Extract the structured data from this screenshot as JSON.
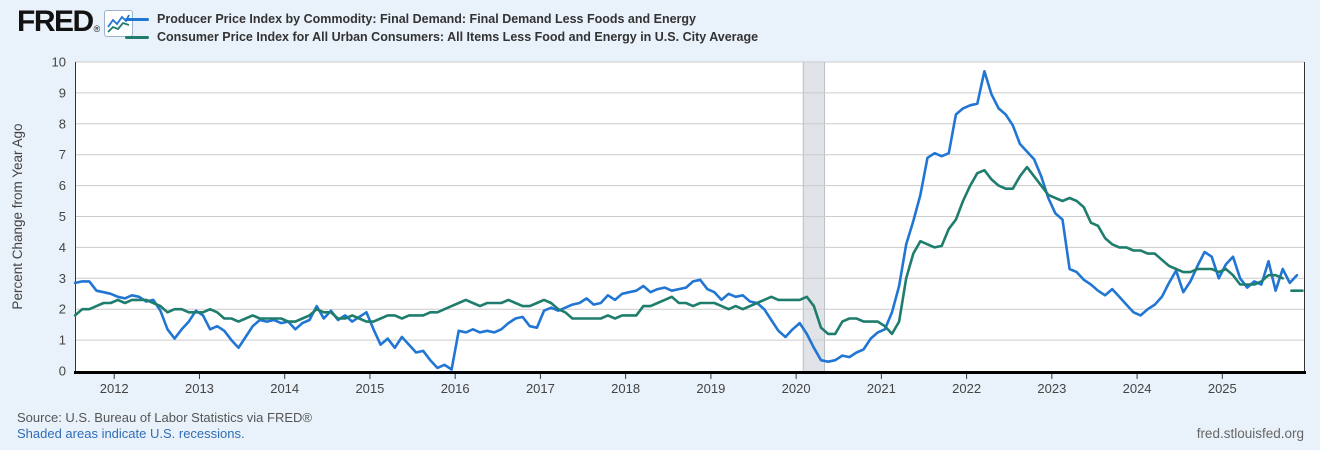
{
  "header": {
    "logo_text": "FRED",
    "logo_registered": "®"
  },
  "footer": {
    "source": "Source: U.S. Bureau of Labor Statistics via FRED®",
    "recession_note": "Shaded areas indicate U.S. recessions.",
    "site": "fred.stlouisfed.org"
  },
  "colors": {
    "background": "#e9f1fa",
    "plot_background": "#ffffff",
    "grid": "#cccccc",
    "axis_text": "#444444",
    "frame": "#333333",
    "axis_line": "#000000",
    "recession_band": "#e0e4e8",
    "recession_band_edge": "#b9bfc5",
    "series_blue": "#2176d4",
    "series_green": "#1f7d6d",
    "link": "#2f6eb8"
  },
  "chart_data": {
    "type": "line",
    "ylabel": "Percent Change from Year Ago",
    "ylim": [
      0,
      10
    ],
    "yticks": [
      0,
      1,
      2,
      3,
      4,
      5,
      6,
      7,
      8,
      9,
      10
    ],
    "xlim_decimal_years": [
      2011.54,
      2025.97
    ],
    "xticks_years": [
      2012,
      2013,
      2014,
      2015,
      2016,
      2017,
      2018,
      2019,
      2020,
      2021,
      2022,
      2023,
      2024,
      2025
    ],
    "grid": "horizontal",
    "legend_position": "top-left",
    "recession_bands": [
      {
        "start": "2020-02",
        "end": "2020-04"
      }
    ],
    "frequency": "monthly",
    "series": [
      {
        "name": "Producer Price Index by Commodity: Final Demand: Final Demand Less Foods and Energy",
        "color": "#2176d4",
        "start": "2011-07",
        "values": [
          2.85,
          2.9,
          2.9,
          2.6,
          2.55,
          2.5,
          2.4,
          2.35,
          2.45,
          2.4,
          2.25,
          2.3,
          1.95,
          1.35,
          1.05,
          1.35,
          1.6,
          1.95,
          1.8,
          1.35,
          1.45,
          1.3,
          1.0,
          0.75,
          1.1,
          1.45,
          1.65,
          1.6,
          1.65,
          1.55,
          1.6,
          1.35,
          1.55,
          1.65,
          2.1,
          1.7,
          1.95,
          1.65,
          1.8,
          1.6,
          1.75,
          1.9,
          1.35,
          0.85,
          1.05,
          0.75,
          1.1,
          0.85,
          0.6,
          0.65,
          0.35,
          0.1,
          0.2,
          0.05,
          1.3,
          1.25,
          1.35,
          1.25,
          1.3,
          1.25,
          1.35,
          1.55,
          1.7,
          1.75,
          1.45,
          1.4,
          1.95,
          2.05,
          1.95,
          2.05,
          2.15,
          2.2,
          2.35,
          2.15,
          2.2,
          2.45,
          2.3,
          2.5,
          2.55,
          2.6,
          2.75,
          2.55,
          2.65,
          2.7,
          2.6,
          2.65,
          2.7,
          2.9,
          2.95,
          2.65,
          2.55,
          2.3,
          2.5,
          2.4,
          2.45,
          2.25,
          2.2,
          2.0,
          1.65,
          1.3,
          1.1,
          1.35,
          1.55,
          1.2,
          0.75,
          0.35,
          0.3,
          0.35,
          0.5,
          0.45,
          0.6,
          0.7,
          1.05,
          1.25,
          1.35,
          1.9,
          2.75,
          4.1,
          4.85,
          5.7,
          6.9,
          7.05,
          6.95,
          7.05,
          8.3,
          8.5,
          8.6,
          8.65,
          9.7,
          8.95,
          8.5,
          8.3,
          7.95,
          7.35,
          7.1,
          6.85,
          6.3,
          5.6,
          5.1,
          4.9,
          3.3,
          3.2,
          2.95,
          2.8,
          2.6,
          2.45,
          2.65,
          2.4,
          2.15,
          1.9,
          1.8,
          2.0,
          2.15,
          2.4,
          2.85,
          3.25,
          2.55,
          2.9,
          3.4,
          3.85,
          3.7,
          3.0,
          3.45,
          3.7,
          3.0,
          2.7,
          2.9,
          2.8,
          3.55,
          2.6,
          3.3,
          2.85,
          3.1
        ]
      },
      {
        "name": "Consumer Price Index for All Urban Consumers: All Items Less Food and Energy in U.S. City Average",
        "color": "#1f7d6d",
        "start": "2011-07",
        "values": [
          1.8,
          2.0,
          2.0,
          2.1,
          2.2,
          2.2,
          2.3,
          2.2,
          2.3,
          2.3,
          2.3,
          2.2,
          2.1,
          1.9,
          2.0,
          2.0,
          1.9,
          1.9,
          1.9,
          2.0,
          1.9,
          1.7,
          1.7,
          1.6,
          1.7,
          1.8,
          1.7,
          1.7,
          1.7,
          1.7,
          1.6,
          1.6,
          1.7,
          1.8,
          2.0,
          1.9,
          1.9,
          1.7,
          1.7,
          1.8,
          1.7,
          1.6,
          1.6,
          1.7,
          1.8,
          1.8,
          1.7,
          1.8,
          1.8,
          1.8,
          1.9,
          1.9,
          2.0,
          2.1,
          2.2,
          2.3,
          2.2,
          2.1,
          2.2,
          2.2,
          2.2,
          2.3,
          2.2,
          2.1,
          2.1,
          2.2,
          2.3,
          2.2,
          2.0,
          1.9,
          1.7,
          1.7,
          1.7,
          1.7,
          1.7,
          1.8,
          1.7,
          1.8,
          1.8,
          1.8,
          2.1,
          2.1,
          2.2,
          2.3,
          2.4,
          2.2,
          2.2,
          2.1,
          2.2,
          2.2,
          2.2,
          2.1,
          2.0,
          2.1,
          2.0,
          2.1,
          2.2,
          2.3,
          2.4,
          2.3,
          2.3,
          2.3,
          2.3,
          2.4,
          2.1,
          1.4,
          1.2,
          1.2,
          1.6,
          1.7,
          1.7,
          1.6,
          1.6,
          1.6,
          1.45,
          1.2,
          1.6,
          3.0,
          3.8,
          4.2,
          4.1,
          4.0,
          4.05,
          4.6,
          4.9,
          5.5,
          6.0,
          6.4,
          6.5,
          6.2,
          6.0,
          5.9,
          5.9,
          6.3,
          6.6,
          6.3,
          6.0,
          5.7,
          5.6,
          5.5,
          5.6,
          5.5,
          5.3,
          4.8,
          4.7,
          4.3,
          4.1,
          4.0,
          4.0,
          3.9,
          3.9,
          3.8,
          3.8,
          3.6,
          3.4,
          3.3,
          3.2,
          3.2,
          3.3,
          3.3,
          3.3,
          3.2,
          3.3,
          3.1,
          2.8,
          2.8,
          2.8,
          2.9,
          3.1,
          3.1,
          3.0,
          null,
          2.6
        ]
      }
    ]
  }
}
